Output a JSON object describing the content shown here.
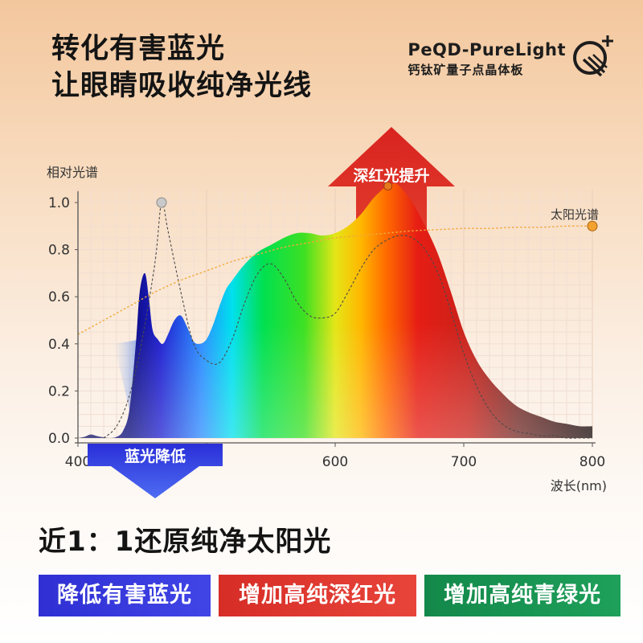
{
  "headline": {
    "line1": "转化有害蓝光",
    "line2": "让眼睛吸收纯净光线"
  },
  "brand": {
    "name": "PeQD-PureLight",
    "sub": "钙钛矿量子点晶体板"
  },
  "subtitle": "近1：1还原纯净太阳光",
  "tags": [
    {
      "label": "降低有害蓝光",
      "color": "#3438dc"
    },
    {
      "label": "增加高纯深红光",
      "color": "#dd3530"
    },
    {
      "label": "增加高纯青绿光",
      "color": "#179452"
    }
  ],
  "chart_data": {
    "type": "line",
    "ylabel": "相对光谱",
    "xlabel": "波长(nm)",
    "xlim": [
      400,
      800
    ],
    "ylim": [
      0,
      1.0
    ],
    "x_ticks": [
      "400",
      "500",
      "600",
      "700",
      "800"
    ],
    "y_ticks": [
      "0.0",
      "0.2",
      "0.4",
      "0.6",
      "0.8",
      "1.0"
    ],
    "grid": true,
    "series": [
      {
        "name": "PeQD-PureLight",
        "color_scale": "spectrum",
        "x": [
          400,
          405,
          410,
          415,
          420,
          425,
          430,
          435,
          440,
          445,
          448,
          452,
          455,
          458,
          462,
          466,
          470,
          475,
          480,
          485,
          490,
          495,
          500,
          505,
          510,
          515,
          520,
          530,
          540,
          550,
          560,
          570,
          580,
          590,
          600,
          610,
          620,
          630,
          640,
          645,
          650,
          660,
          670,
          680,
          690,
          700,
          710,
          720,
          730,
          740,
          750,
          760,
          770,
          780,
          790,
          800
        ],
        "y": [
          0.0,
          0.005,
          0.015,
          0.008,
          0.003,
          0.0,
          0.005,
          0.03,
          0.12,
          0.4,
          0.62,
          0.7,
          0.6,
          0.46,
          0.42,
          0.4,
          0.44,
          0.5,
          0.52,
          0.47,
          0.41,
          0.4,
          0.42,
          0.48,
          0.56,
          0.63,
          0.67,
          0.74,
          0.79,
          0.82,
          0.85,
          0.87,
          0.87,
          0.86,
          0.87,
          0.9,
          0.95,
          1.02,
          1.07,
          1.08,
          1.07,
          1.0,
          0.9,
          0.78,
          0.62,
          0.45,
          0.33,
          0.25,
          0.19,
          0.14,
          0.11,
          0.09,
          0.07,
          0.06,
          0.05,
          0.05
        ]
      },
      {
        "name": "",
        "style": "dashed",
        "x": [
          420,
          430,
          440,
          450,
          460,
          465,
          470,
          480,
          490,
          500,
          510,
          520,
          530,
          540,
          550,
          560,
          570,
          580,
          590,
          600,
          610,
          620,
          630,
          640,
          650,
          660,
          670,
          680,
          690,
          700,
          710,
          720,
          730,
          740,
          750,
          760,
          770,
          780,
          790,
          800
        ],
        "y": [
          0.0,
          0.05,
          0.18,
          0.42,
          0.75,
          1.0,
          0.88,
          0.62,
          0.4,
          0.33,
          0.32,
          0.42,
          0.58,
          0.7,
          0.74,
          0.68,
          0.58,
          0.52,
          0.51,
          0.53,
          0.62,
          0.72,
          0.8,
          0.84,
          0.86,
          0.85,
          0.8,
          0.7,
          0.54,
          0.36,
          0.22,
          0.12,
          0.06,
          0.03,
          0.02,
          0.01,
          0.01,
          0.0,
          0.0,
          0.0
        ]
      },
      {
        "name": "太阳光谱",
        "style": "dotted",
        "color": "#f2a93a",
        "x": [
          400,
          420,
          440,
          460,
          480,
          500,
          520,
          540,
          560,
          580,
          600,
          620,
          640,
          660,
          680,
          700,
          720,
          740,
          760,
          780,
          800
        ],
        "y": [
          0.44,
          0.5,
          0.56,
          0.62,
          0.67,
          0.71,
          0.75,
          0.78,
          0.81,
          0.83,
          0.85,
          0.86,
          0.87,
          0.88,
          0.885,
          0.89,
          0.89,
          0.895,
          0.895,
          0.9,
          0.9
        ]
      }
    ],
    "annotations": [
      {
        "text": "深红光提升",
        "direction": "up",
        "x": 640
      },
      {
        "text": "蓝光降低",
        "direction": "down",
        "x": 450
      }
    ]
  }
}
